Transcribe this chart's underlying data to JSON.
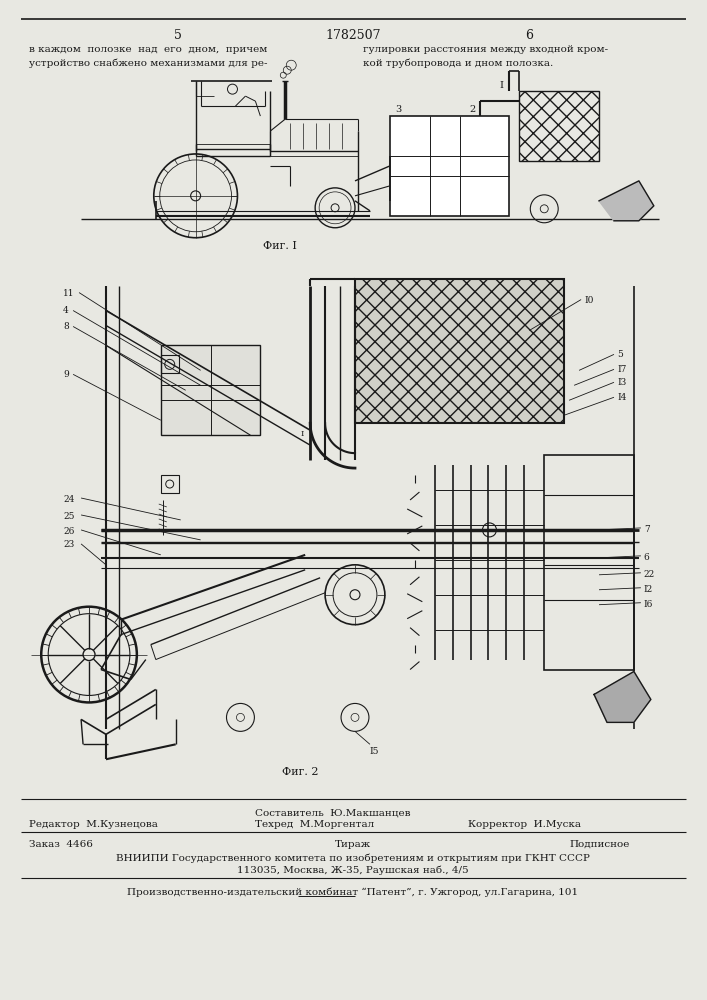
{
  "bg_color": "#e8e8e2",
  "page_width": 7.07,
  "page_height": 10.0,
  "page_num_left": "5",
  "page_num_center": "1782507",
  "page_num_right": "6",
  "text_left_1": "в каждом  полозке  над  его  дном,  причем",
  "text_left_2": "устройство снабжено механизмами для ре-",
  "text_right_1": "гулировки расстояния между входной кром-",
  "text_right_2": "кой трубопровода и дном полозка.",
  "fig1_label": "Фиг. I",
  "fig2_label": "Фиг. 2",
  "editor": "Редактор  М.Кузнецова",
  "composer": "Составитель  Ю.Макшанцев",
  "techred": "Техред  М.Моргентал",
  "corrector": "Корректор  И.Муска",
  "order": "Заказ  4466",
  "tirazh": "Тираж",
  "podpisnoe": "Подписное",
  "vniipи": "ВНИИПИ Государственного комитета по изобретениям и открытиям при ГКНТ СССР",
  "address": "113035, Москва, Ж-35, Раушская наб., 4/5",
  "publisher": "Производственно-издательский комбинат “Патент”, г. Ужгород, ул.Гагарина, 101"
}
